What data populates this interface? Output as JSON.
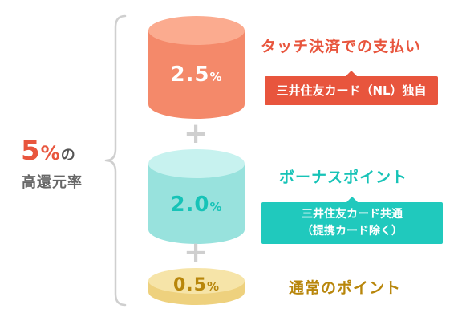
{
  "summary": {
    "rate_number": "5",
    "rate_unit": "%",
    "rate_suffix": "の",
    "rate_label": "高還元率"
  },
  "tiers": [
    {
      "rate": "2.5",
      "unit": "%",
      "title": "タッチ決済での支払い",
      "badge_lines": [
        "三井住友カード（NL）独自"
      ],
      "color": "#f4896a",
      "color_top": "#fbab8f",
      "text_color": "#e8553d"
    },
    {
      "rate": "2.0",
      "unit": "%",
      "title": "ボーナスポイント",
      "badge_lines": [
        "三井住友カード共通",
        "（提携カード除く）"
      ],
      "color": "#98e2dd",
      "color_top": "#c7f2ef",
      "text_color": "#17c3b7"
    },
    {
      "rate": "0.5",
      "unit": "%",
      "title": "通常のポイント",
      "badge_lines": [],
      "color": "#eed17e",
      "color_top": "#f6e4a8",
      "text_color": "#b8860b"
    }
  ],
  "plus_sign": "+"
}
